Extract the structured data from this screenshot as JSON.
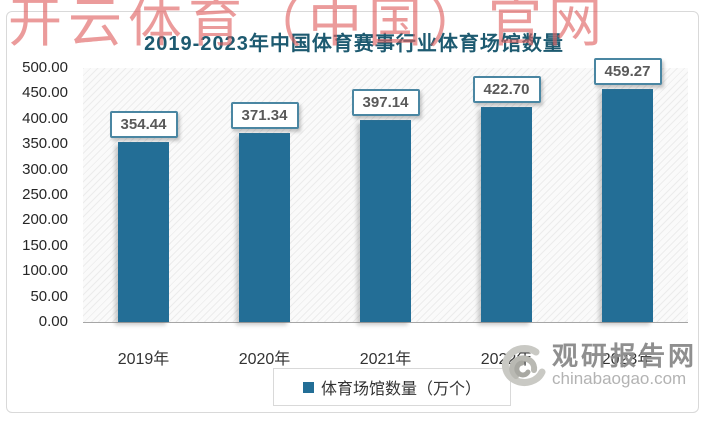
{
  "watermark": {
    "text": "开云体育（中国）官网",
    "color": "#df5f5f"
  },
  "chart_data": {
    "type": "bar",
    "title": "2019-2023年中国体育赛事行业体育场馆数量",
    "categories": [
      "2019年",
      "2020年",
      "2021年",
      "2022年",
      "2023年"
    ],
    "series": [
      {
        "name": "体育场馆数量（万个）",
        "values": [
          354.44,
          371.34,
          397.14,
          422.7,
          459.27
        ]
      }
    ],
    "value_labels": [
      "354.44",
      "371.34",
      "397.14",
      "422.70",
      "459.27"
    ],
    "ylim": [
      0,
      500
    ],
    "ytick_step": 50,
    "yticks": [
      "500.00",
      "450.00",
      "400.00",
      "350.00",
      "300.00",
      "250.00",
      "200.00",
      "150.00",
      "100.00",
      "50.00",
      "0.00"
    ],
    "grid": false,
    "legend_position": "bottom",
    "plot_background": "diagonal-hatch",
    "bar_color": "#236e96"
  },
  "legend": {
    "label": "体育场馆数量（万个）",
    "marker_color": "#236e96"
  },
  "logo": {
    "name": "观研报告网",
    "domain": "chinabaogao.com"
  },
  "colors": {
    "title": "#1d5a70",
    "bar": "#236e96",
    "axis_text": "#262626",
    "category_text": "#333333",
    "frame_border": "#d9d9d9",
    "value_box_border": "#4a86a2",
    "value_text": "#595959",
    "watermark": "#df5f5f",
    "logo_name": "#8f8f8f",
    "logo_domain": "#b3b3b3"
  }
}
